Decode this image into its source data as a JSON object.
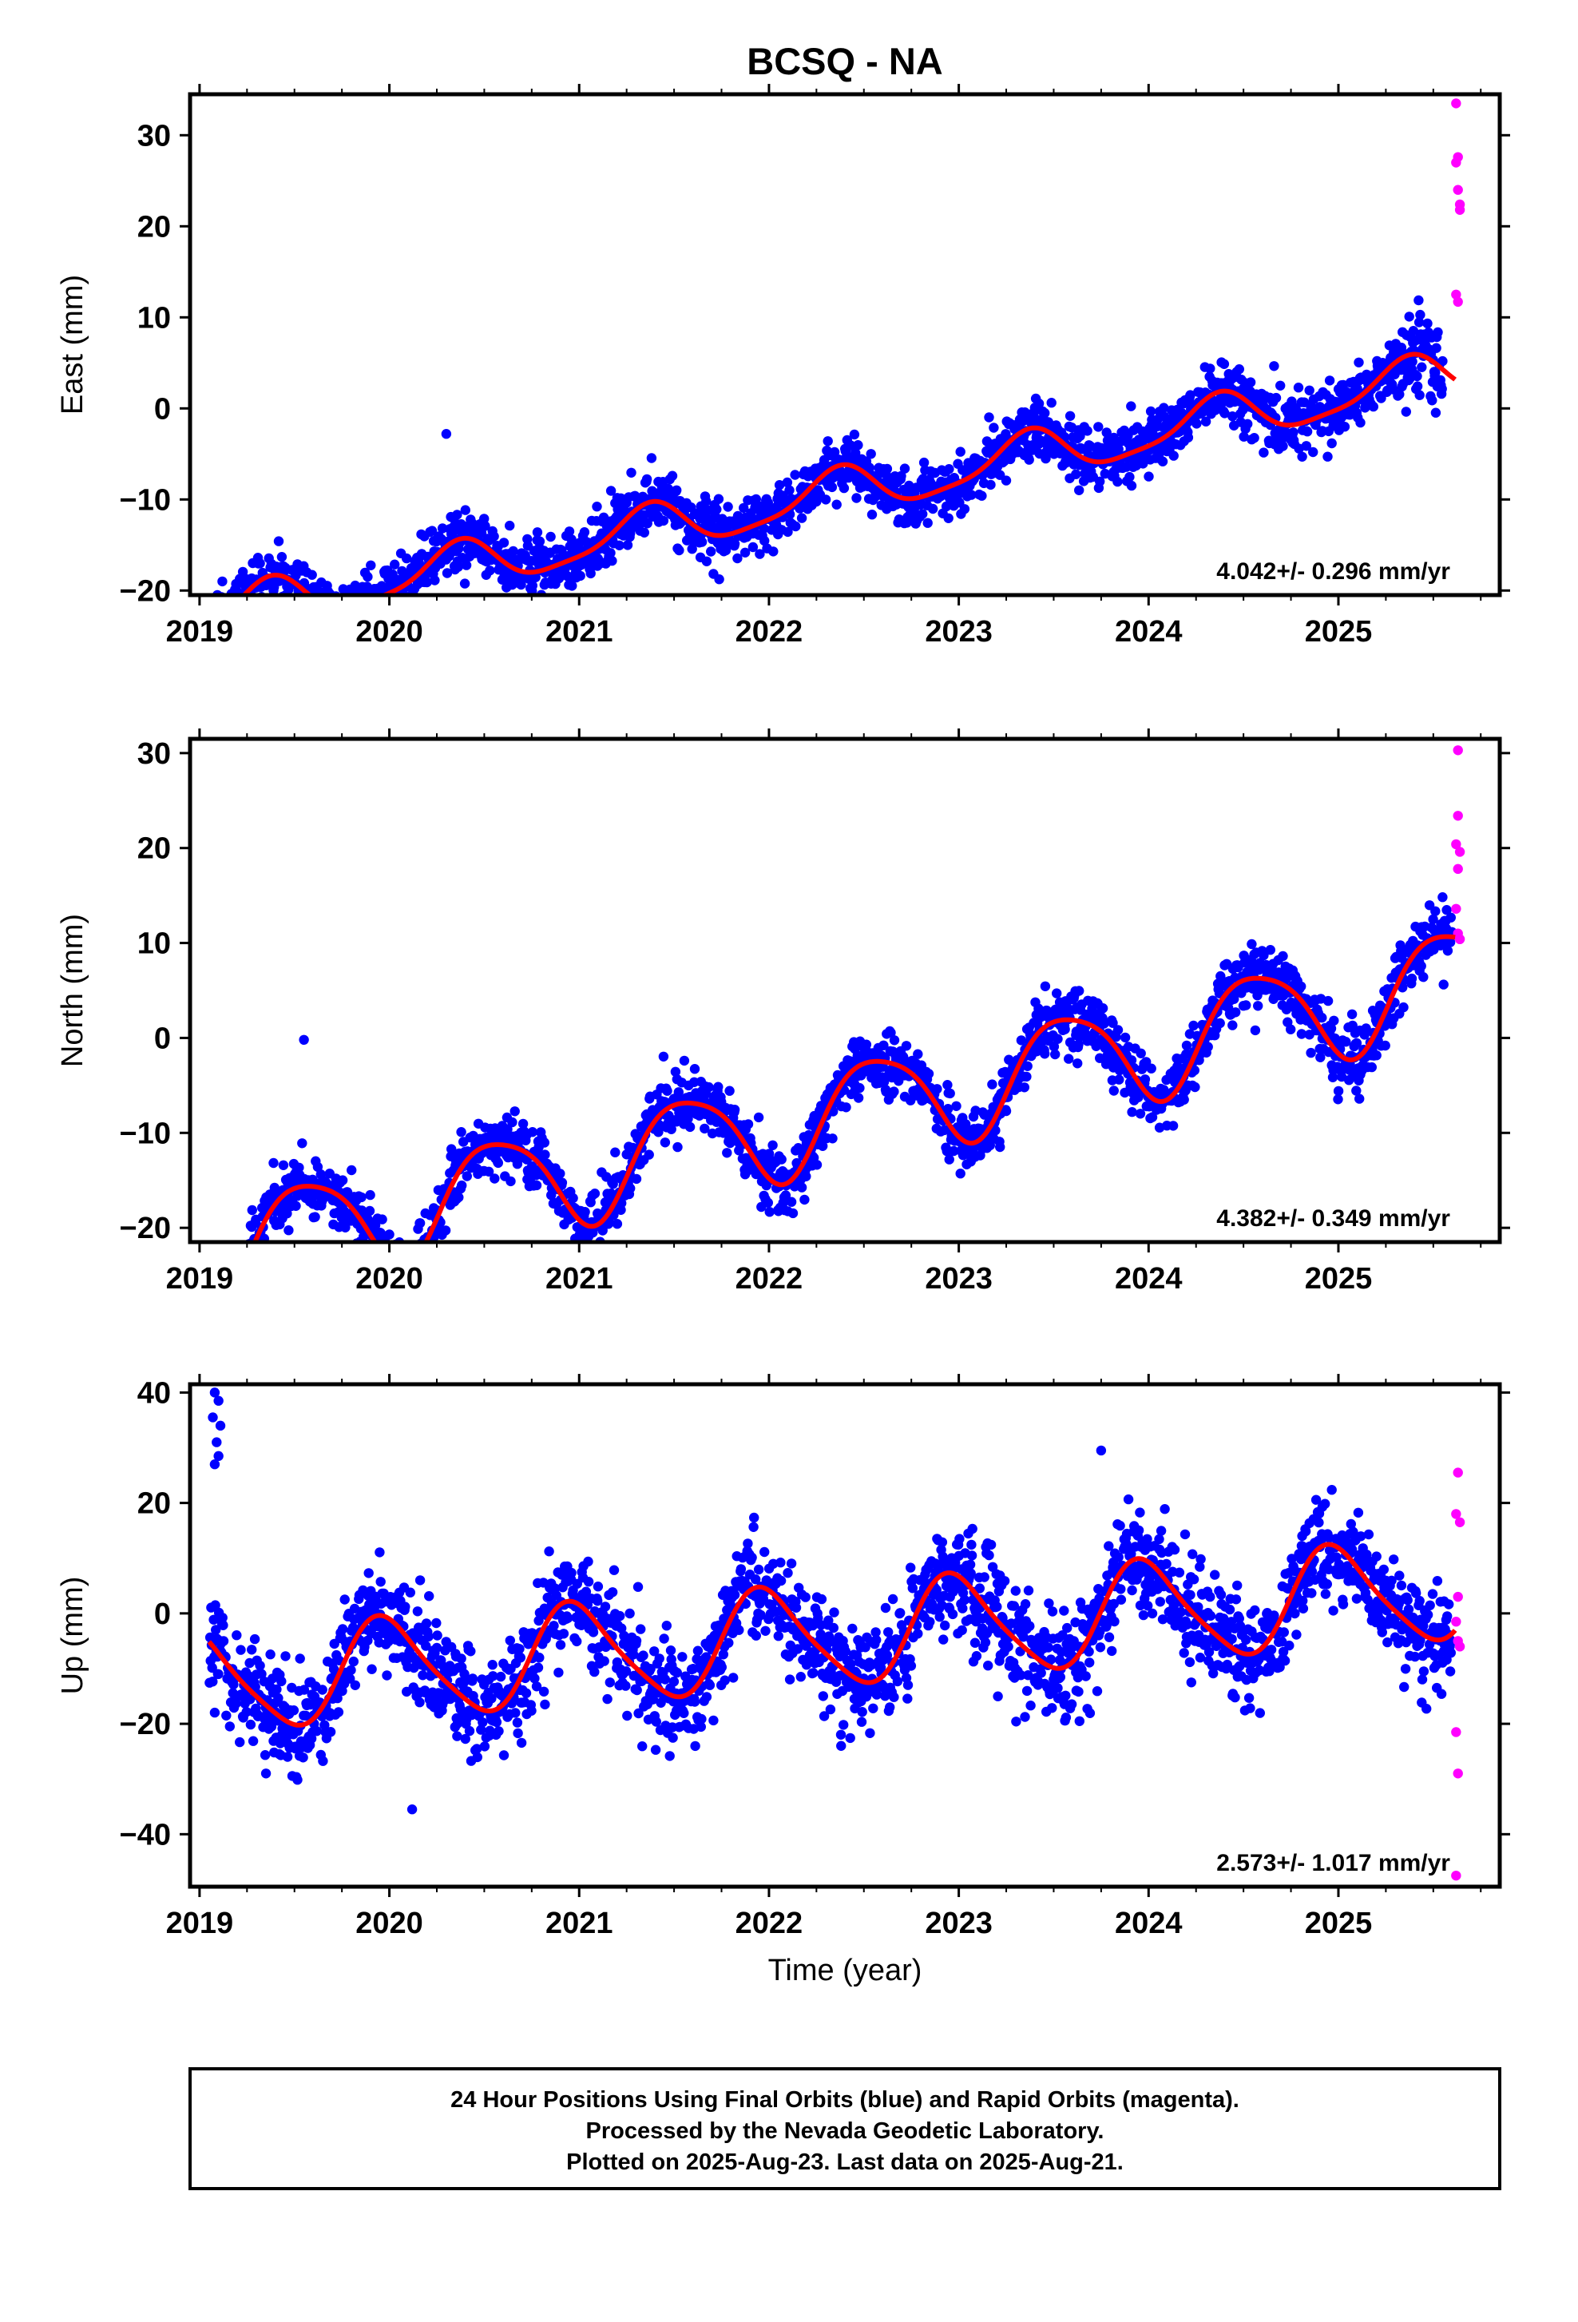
{
  "title": "BCSQ - NA",
  "colors": {
    "final_orbits": "#0000ff",
    "rapid_orbits": "#ff00ff",
    "fit_curve": "#ff0000",
    "frame": "#000000"
  },
  "footer": {
    "line1": "24 Hour Positions Using Final Orbits (blue) and Rapid Orbits (magenta).",
    "line2": "Processed by the Nevada Geodetic Laboratory.",
    "line3": "Plotted on 2025-Aug-23. Last data on 2025-Aug-21."
  },
  "chart_data": [
    {
      "type": "scatter",
      "title": "BCSQ - NA",
      "ylabel": "East (mm)",
      "xlabel": "",
      "xlim": [
        2018.95,
        2025.85
      ],
      "ylim": [
        -20.5,
        34.5
      ],
      "x_ticks": [
        2019,
        2020,
        2021,
        2022,
        2023,
        2024,
        2025
      ],
      "y_ticks": [
        -20,
        -10,
        0,
        10,
        20,
        30
      ],
      "rate_label": "4.042+/- 0.296 mm/yr",
      "trend": {
        "rate": 4.042,
        "offset": -9.6,
        "annual_amp": 2.5,
        "annual_phase": 1.2,
        "semi_amp": 0.6,
        "semi_phase": 0.3
      },
      "final_orbits_range": [
        2019.05,
        2025.55
      ],
      "scatter_sigma": 1.6,
      "rapid_orbits": {
        "x": [
          2025.62,
          2025.62,
          2025.63,
          2025.63,
          2025.64,
          2025.64,
          2025.62,
          2025.63
        ],
        "y": [
          33.5,
          27.0,
          27.6,
          24.0,
          22.4,
          21.8,
          12.5,
          11.7
        ]
      },
      "outliers": {
        "x": [
          2019.12,
          2019.3,
          2019.5,
          2020.3,
          2020.78,
          2025.35
        ],
        "y": [
          -19.0,
          -19.5,
          -19.0,
          -2.8,
          -13.6,
          4.2
        ]
      }
    },
    {
      "type": "scatter",
      "ylabel": "North (mm)",
      "xlabel": "",
      "xlim": [
        2018.95,
        2025.85
      ],
      "ylim": [
        -21.5,
        31.5
      ],
      "x_ticks": [
        2019,
        2020,
        2021,
        2022,
        2023,
        2024,
        2025
      ],
      "y_ticks": [
        -20,
        -10,
        0,
        10,
        20,
        30
      ],
      "rate_label": "4.382+/- 0.349 mm/yr",
      "trend": {
        "rate": 4.382,
        "offset": -8.2,
        "annual_amp": 5.4,
        "annual_phase": -0.1,
        "semi_amp": 0.9,
        "semi_phase": 1.0
      },
      "final_orbits_range": [
        2019.05,
        2025.6
      ],
      "scatter_sigma": 1.6,
      "rapid_orbits": {
        "x": [
          2025.63,
          2025.63,
          2025.62,
          2025.64,
          2025.63,
          2025.62,
          2025.63,
          2025.64
        ],
        "y": [
          30.3,
          23.4,
          20.4,
          19.6,
          17.8,
          13.6,
          11.0,
          10.4
        ]
      },
      "outliers": {
        "x": [
          2019.55,
          2022.95,
          2020.0
        ],
        "y": [
          -0.2,
          -12.8,
          -20.7
        ]
      }
    },
    {
      "type": "scatter",
      "ylabel": "Up (mm)",
      "xlabel": "Time (year)",
      "xlim": [
        2018.95,
        2025.85
      ],
      "ylim": [
        -49.5,
        41.5
      ],
      "x_ticks": [
        2019,
        2020,
        2021,
        2022,
        2023,
        2024,
        2025
      ],
      "y_ticks": [
        -40,
        -20,
        0,
        20,
        40
      ],
      "rate_label": "2.573+/- 1.017 mm/yr",
      "trend": {
        "rate": 2.573,
        "offset": -4.2,
        "annual_amp": 9.0,
        "annual_phase": -2.7,
        "semi_amp": 1.5,
        "semi_phase": 0.5
      },
      "final_orbits_range": [
        2019.05,
        2025.6
      ],
      "scatter_sigma": 4.6,
      "rapid_orbits": {
        "x": [
          2025.63,
          2025.62,
          2025.64,
          2025.63,
          2025.62,
          2025.63,
          2025.64,
          2025.62,
          2025.63,
          2025.62
        ],
        "y": [
          25.5,
          18.0,
          16.5,
          3.0,
          -1.5,
          -5.0,
          -6.0,
          -21.5,
          -29.0,
          -47.5
        ]
      },
      "outliers": {
        "x": [
          2019.08,
          2019.1,
          2019.07,
          2019.11,
          2019.09,
          2019.1,
          2019.08,
          2019.35,
          2020.12,
          2022.38,
          2023.75
        ],
        "y": [
          40.0,
          38.5,
          35.5,
          34.0,
          31.0,
          28.5,
          27.0,
          -29.0,
          -35.5,
          -24.0,
          29.5
        ]
      }
    }
  ]
}
